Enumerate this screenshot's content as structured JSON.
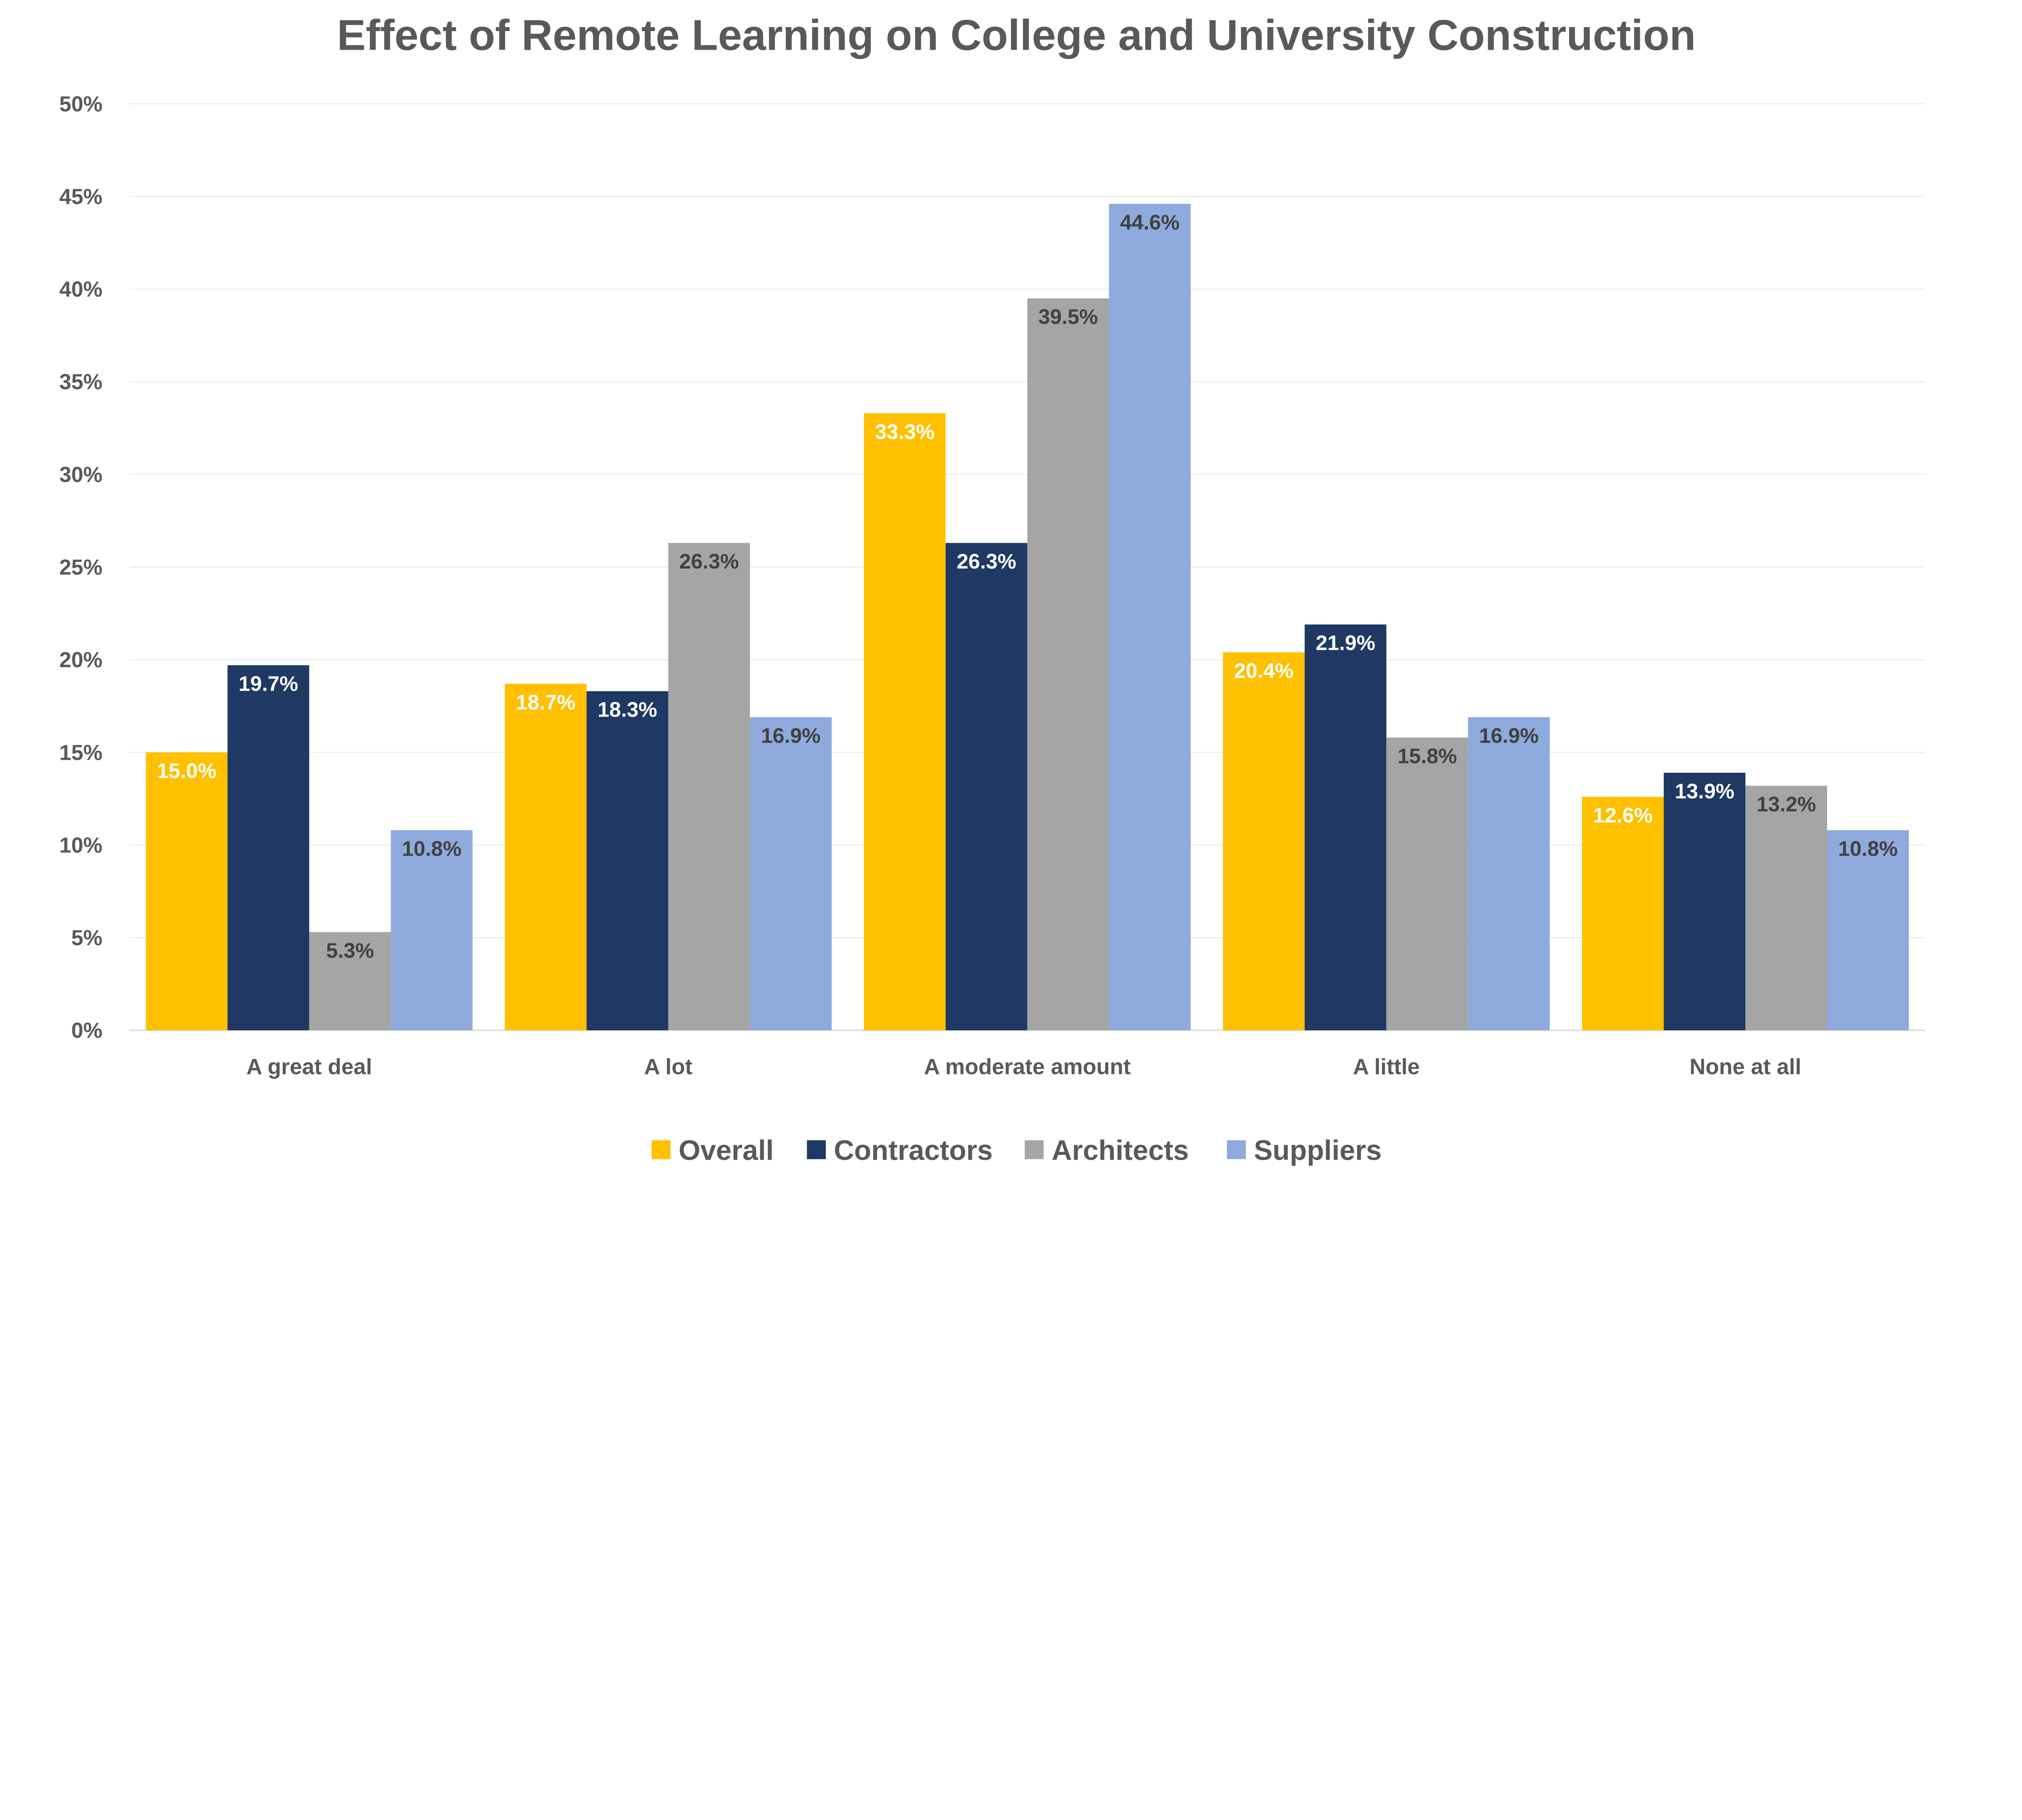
{
  "chart_data": {
    "type": "bar",
    "title": "Effect of Remote Learning on College and University Construction",
    "xlabel": "",
    "ylabel": "",
    "ylim": [
      0,
      50
    ],
    "yticks": [
      "0%",
      "5%",
      "10%",
      "15%",
      "20%",
      "25%",
      "30%",
      "35%",
      "40%",
      "45%",
      "50%"
    ],
    "grid": true,
    "legend_position": "bottom",
    "categories": [
      "A great deal",
      "A lot",
      "A moderate amount",
      "A little",
      "None at all"
    ],
    "series": [
      {
        "name": "Overall",
        "color": "#FFC000",
        "label_color": "#FFFFFF",
        "values": [
          15.0,
          18.7,
          33.3,
          20.4,
          12.6
        ],
        "labels": [
          "15.0%",
          "18.7%",
          "33.3%",
          "20.4%",
          "12.6%"
        ]
      },
      {
        "name": "Contractors",
        "color": "#1F3864",
        "label_color": "#FFFFFF",
        "values": [
          19.7,
          18.3,
          26.3,
          21.9,
          13.9
        ],
        "labels": [
          "19.7%",
          "18.3%",
          "26.3%",
          "21.9%",
          "13.9%"
        ]
      },
      {
        "name": "Architects",
        "color": "#A5A5A5",
        "label_color": "#404040",
        "values": [
          5.3,
          26.3,
          39.5,
          15.8,
          13.2
        ],
        "labels": [
          "5.3%",
          "26.3%",
          "39.5%",
          "15.8%",
          "13.2%"
        ]
      },
      {
        "name": "Suppliers",
        "color": "#8FAADC",
        "label_color": "#404040",
        "values": [
          10.8,
          16.9,
          44.6,
          16.9,
          10.8
        ],
        "labels": [
          "10.8%",
          "16.9%",
          "44.6%",
          "16.9%",
          "10.8%"
        ]
      }
    ]
  }
}
